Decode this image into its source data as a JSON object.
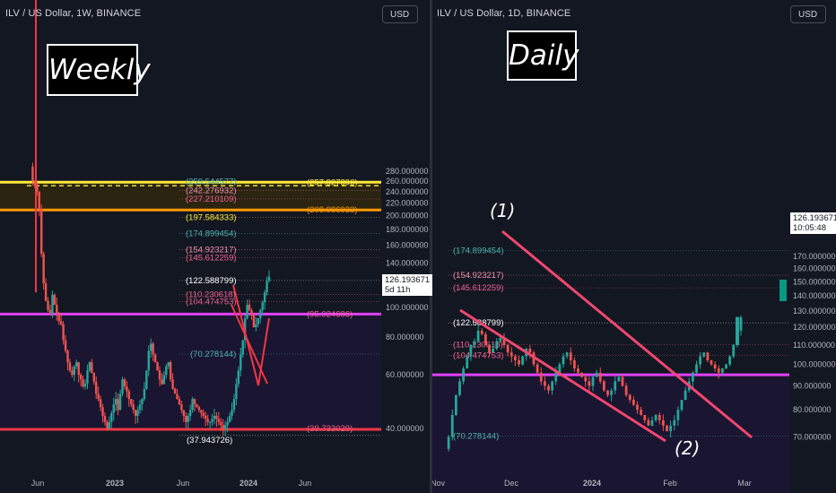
{
  "left_panel": {
    "symbol": "ILV / US Dollar, 1W, BINANCE",
    "currency": "USD",
    "title": "Weekly",
    "price_label": "126.193671",
    "countdown": "5d 11h"
  },
  "right_panel": {
    "symbol": "ILV / US Dollar, 1D, BINANCE",
    "currency": "USD",
    "title": "Daily",
    "price_label": "126.193671",
    "countdown": "10:05:48",
    "wave1_label": "(1)",
    "wave2_label": "(2)"
  },
  "colors": {
    "background": "#131722",
    "up_candle": "#26a69a",
    "down_candle": "#ef5350",
    "pink_line": "#e040fb",
    "orange_line": "#ff9800",
    "yellow_line": "#ffeb3b",
    "red_trend": "#f23645",
    "trendline": "#ef476f"
  },
  "chart_data": [
    {
      "type": "candlestick",
      "title": "ILV / US Dollar, 1W, BINANCE",
      "scale": "log",
      "ylim": [
        36,
        290
      ],
      "x_ticks": [
        "Jun",
        "2023",
        "Jun",
        "2024",
        "Jun"
      ],
      "y_ticks": [
        "280.000000",
        "260.000000",
        "240.000000",
        "220.000000",
        "200.000000",
        "180.000000",
        "160.000000",
        "140.000000",
        "120.000000",
        "100.000000",
        "80.000000",
        "60.000000",
        "40.000000"
      ],
      "fib_levels": [
        {
          "label": "(259.544577)",
          "value": 259.544577,
          "color": "#4db6ac"
        },
        {
          "label": "(257.827896)",
          "value": 257.827896,
          "color": "#ffeb3b"
        },
        {
          "label": "(242.276932)",
          "value": 242.276932,
          "color": "#f48fb1"
        },
        {
          "label": "(227.210109)",
          "value": 227.210109,
          "color": "#f06292"
        },
        {
          "label": "(208.986933)",
          "value": 208.986933,
          "color": "#ff9800"
        },
        {
          "label": "(197.584333)",
          "value": 197.584333,
          "color": "#ffeb3b"
        },
        {
          "label": "(174.899454)",
          "value": 174.899454,
          "color": "#4db6ac"
        },
        {
          "label": "(154.923217)",
          "value": 154.923217,
          "color": "#f48fb1"
        },
        {
          "label": "(145.612259)",
          "value": 145.612259,
          "color": "#f06292"
        },
        {
          "label": "(122.588799)",
          "value": 122.588799,
          "color": "#ffffff"
        },
        {
          "label": "(110.230618)",
          "value": 110.230618,
          "color": "#f06292"
        },
        {
          "label": "(104.474753)",
          "value": 104.474753,
          "color": "#f06292"
        },
        {
          "label": "(95.024686)",
          "value": 95.024686,
          "color": "#f06292"
        },
        {
          "label": "(70.278144)",
          "value": 70.278144,
          "color": "#4db6ac"
        },
        {
          "label": "(39.733029)",
          "value": 39.733029,
          "color": "#f06292"
        },
        {
          "label": "(37.943726)",
          "value": 37.943726,
          "color": "#ffffff"
        }
      ],
      "zones": [
        {
          "from": 208.986933,
          "to": 257.827896,
          "color": "#2a2411"
        },
        {
          "from": 39.733029,
          "to": 95.024686,
          "color": "#1a1530"
        }
      ],
      "last_price": 126.193671
    },
    {
      "type": "candlestick",
      "title": "ILV / US Dollar, 1D, BINANCE",
      "scale": "log",
      "ylim": [
        64,
        185
      ],
      "x_ticks": [
        "Nov",
        "Dec",
        "2024",
        "Feb",
        "Mar"
      ],
      "y_ticks": [
        "170.000000",
        "160.000000",
        "150.000000",
        "140.000000",
        "130.000000",
        "120.000000",
        "110.000000",
        "100.000000",
        "90.000000",
        "80.000000",
        "70.000000"
      ],
      "fib_levels": [
        {
          "label": "(174.899454)",
          "value": 174.899454,
          "color": "#4db6ac"
        },
        {
          "label": "(154.923217)",
          "value": 154.923217,
          "color": "#f48fb1"
        },
        {
          "label": "(145.612259)",
          "value": 145.612259,
          "color": "#f06292"
        },
        {
          "label": "(122.588799)",
          "value": 122.588799,
          "color": "#ffffff"
        },
        {
          "label": "(110.230618)",
          "value": 110.230618,
          "color": "#f06292"
        },
        {
          "label": "(104.474753)",
          "value": 104.474753,
          "color": "#f06292"
        },
        {
          "label": "(70.278144)",
          "value": 70.278144,
          "color": "#4db6ac"
        }
      ],
      "support_line": 95.024686,
      "last_price": 126.193671
    }
  ]
}
